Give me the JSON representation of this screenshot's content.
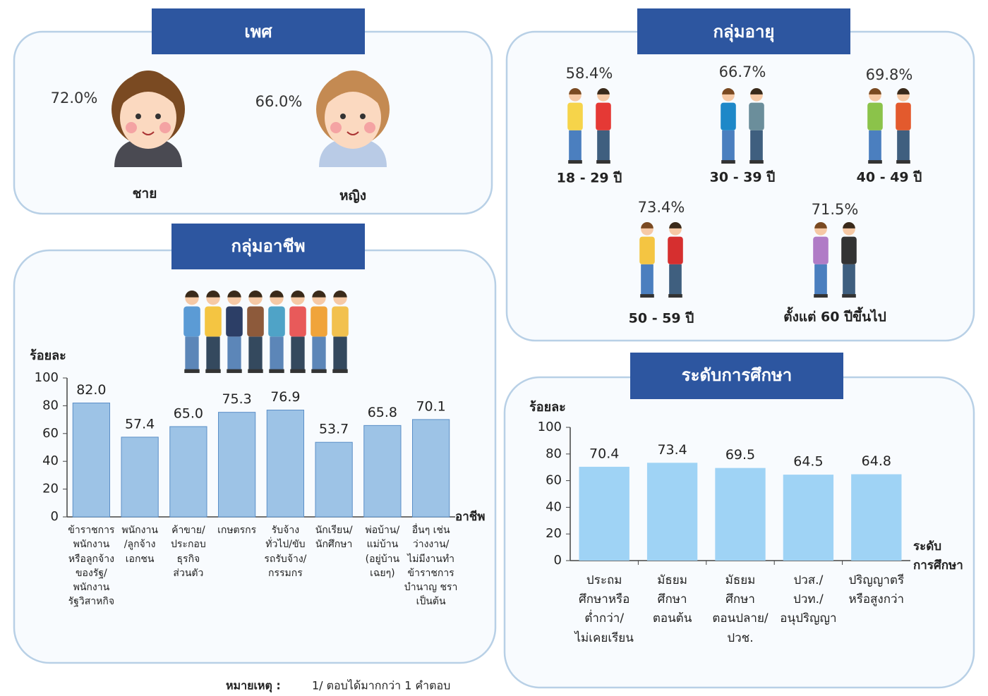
{
  "gender": {
    "title": "เพศ",
    "items": [
      {
        "value": "72.0%",
        "label": "ชาย"
      },
      {
        "value": "66.0%",
        "label": "หญิง"
      }
    ]
  },
  "age": {
    "title": "กลุ่มอายุ",
    "items": [
      {
        "value": "58.4%",
        "label": "18 - 29 ปี"
      },
      {
        "value": "66.7%",
        "label": "30 - 39 ปี"
      },
      {
        "value": "69.8%",
        "label": "40 - 49 ปี"
      },
      {
        "value": "73.4%",
        "label": "50 - 59 ปี"
      },
      {
        "value": "71.5%",
        "label": "ตั้งแต่ 60 ปีขึ้นไป"
      }
    ]
  },
  "chart_data": [
    {
      "type": "bar",
      "title": "กลุ่มอาชีพ",
      "y_label": "ร้อยละ",
      "x_label": "อาชีพ",
      "categories": [
        "ข้าราชการ\nพนักงาน\nหรือลูกจ้าง\nของรัฐ/\nพนักงาน\nรัฐวิสาหกิจ",
        "พนักงาน\n/ลูกจ้าง\nเอกชน",
        "ค้าขาย/\nประกอบ\nธุรกิจ\nส่วนตัว",
        "เกษตรกร",
        "รับจ้าง\nทั่วไป/ขับ\nรถรับจ้าง/\nกรรมกร",
        "นักเรียน/\nนักศึกษา",
        "พ่อบ้าน/\nแม่บ้าน\n(อยู่บ้านเฉยๆ)",
        "อื่นๆ เช่น\nว่างงาน/\nไม่มีงานทำ\nข้าราชการ\nบำนาญ ชรา\nเป็นต้น"
      ],
      "values": [
        82.0,
        57.4,
        65.0,
        75.3,
        76.9,
        53.7,
        65.8,
        70.1
      ],
      "value_labels": [
        "82.0",
        "57.4",
        "65.0",
        "75.3",
        "76.9",
        "53.7",
        "65.8",
        "70.1"
      ],
      "color": "#9dc3e6",
      "ylim": [
        0,
        100
      ],
      "yticks": [
        0,
        20,
        40,
        60,
        80,
        100
      ]
    },
    {
      "type": "bar",
      "title": "ระดับการศึกษา",
      "y_label": "ร้อยละ",
      "x_label": "ระดับ\nการศึกษา",
      "categories": [
        "ประถม\nศึกษาหรือ\nต่ำกว่า/\nไม่เคยเรียน",
        "มัธยม\nศึกษา\nตอนต้น",
        "มัธยม\nศึกษา\nตอนปลาย/\nปวช.",
        "ปวส./\nปวท./\nอนุปริญญา",
        "ปริญญาตรี\nหรือสูงกว่า"
      ],
      "values": [
        70.4,
        73.4,
        69.5,
        64.5,
        64.8
      ],
      "color": "#9fd3f5",
      "ylim": [
        0,
        100
      ],
      "yticks": [
        0,
        20,
        40,
        60,
        80,
        100
      ]
    }
  ],
  "note": {
    "label": "หมายเหตุ :",
    "text": "1/ ตอบได้มากกว่า 1 คำตอบ"
  }
}
